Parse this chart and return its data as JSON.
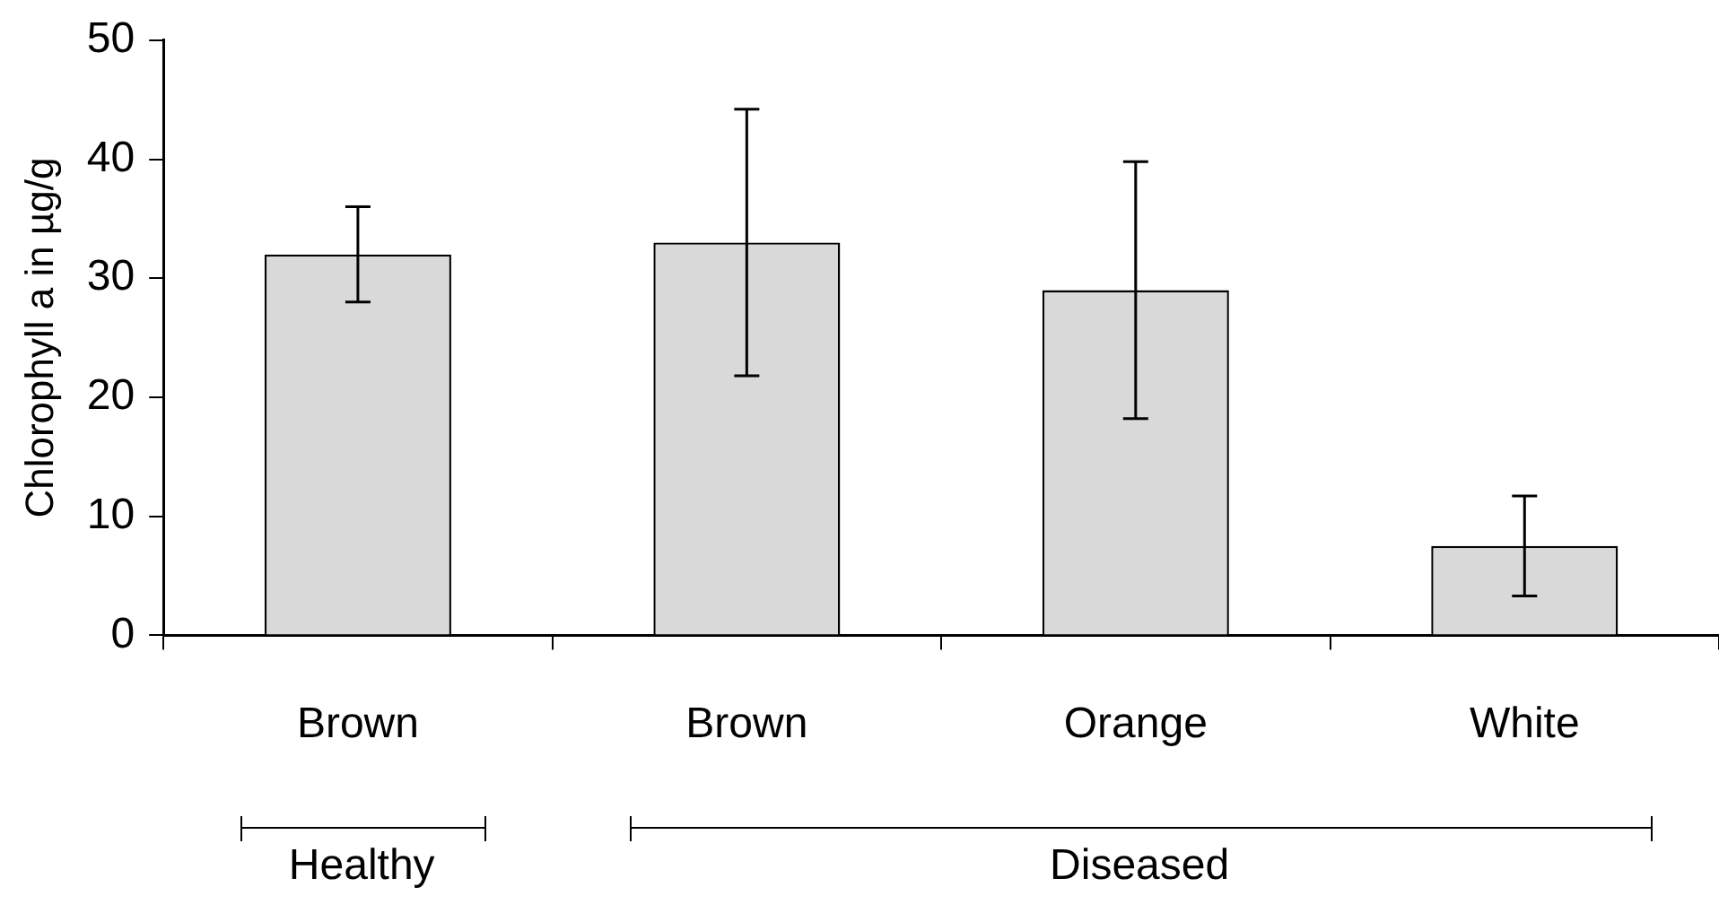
{
  "chart_data": {
    "type": "bar",
    "ylabel": "Chlorophyll a in µg/g",
    "categories": [
      "Brown",
      "Brown",
      "Orange",
      "White"
    ],
    "values": [
      32,
      33,
      29,
      7.5
    ],
    "errors": [
      4,
      11.2,
      10.8,
      4.2
    ],
    "color": "#d9d9d9",
    "ylim": [
      0,
      50
    ],
    "yticks": [
      0,
      10,
      20,
      30,
      40,
      50
    ],
    "grid": false,
    "legend": false,
    "annotations": [
      "Healthy",
      "Diseased"
    ]
  }
}
